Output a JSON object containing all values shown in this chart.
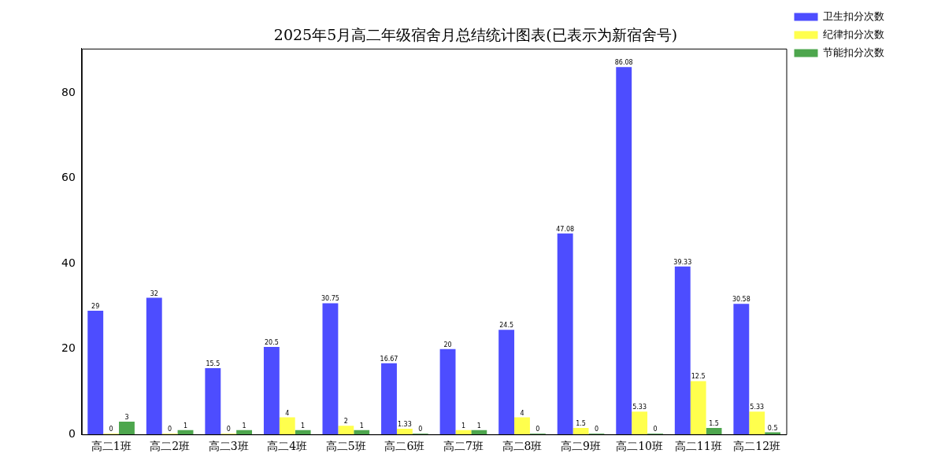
{
  "chart_data": {
    "type": "bar",
    "title": "2025年5月高二年级宿舍月总结统计图表(已表示为新宿舍号)",
    "categories": [
      "高二1班",
      "高二2班",
      "高二3班",
      "高二4班",
      "高二5班",
      "高二6班",
      "高二7班",
      "高二8班",
      "高二9班",
      "高二10班",
      "高二11班",
      "高二12班"
    ],
    "series": [
      {
        "name": "卫生扣分次数",
        "color": "#4d4dff",
        "values": [
          29,
          32,
          15.5,
          20.5,
          30.75,
          16.67,
          20,
          24.5,
          47.08,
          86.08,
          39.33,
          30.58
        ]
      },
      {
        "name": "纪律扣分次数",
        "color": "#ffff4d",
        "values": [
          0,
          0,
          0,
          4,
          2,
          1.33,
          1,
          4,
          1.5,
          5.33,
          12.5,
          5.33
        ]
      },
      {
        "name": "节能扣分次数",
        "color": "#4da64d",
        "values": [
          3,
          1,
          1,
          1,
          1,
          0,
          1,
          0,
          0,
          0,
          1.5,
          0.5
        ]
      }
    ],
    "ylim": [
      0,
      90.4
    ],
    "yticks": [
      0,
      20,
      40,
      60,
      80
    ],
    "grid": false,
    "legend": "top right",
    "data_labels": true
  }
}
